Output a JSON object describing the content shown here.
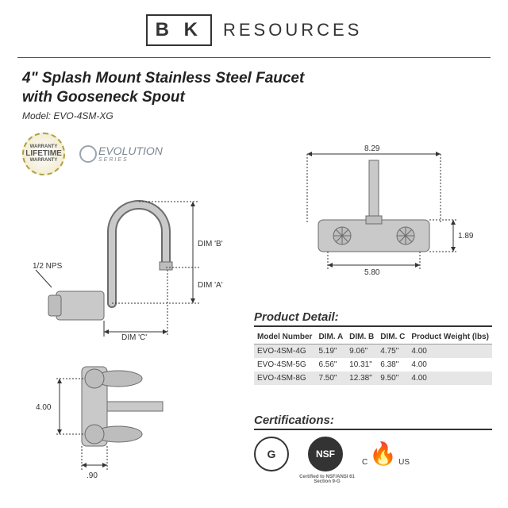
{
  "brand": {
    "logo": "B K",
    "name": "RESOURCES"
  },
  "title_line1": "4\" Splash Mount Stainless Steel Faucet",
  "title_line2": "with Gooseneck Spout",
  "model_label": "Model:",
  "model_value": "EVO-4SM-XG",
  "warranty": {
    "top": "WARRANTY",
    "mid": "LIFETIME",
    "bot": "WARRANTY"
  },
  "evolution": {
    "text": "EVOLUTION",
    "sub": "SERIES"
  },
  "side_view": {
    "nps": "1/2 NPS",
    "dim_a": "DIM 'A'",
    "dim_b": "DIM 'B'",
    "dim_c": "DIM 'C'"
  },
  "front_view": {
    "width": "8.29",
    "height": "1.89",
    "base": "5.80"
  },
  "bottom_view": {
    "height": "4.00",
    "depth": ".90"
  },
  "detail": {
    "heading": "Product Detail:",
    "columns": [
      "Model Number",
      "DIM. A",
      "DIM. B",
      "DIM. C",
      "Product Weight (lbs)"
    ],
    "rows": [
      [
        "EVO-4SM-4G",
        "5.19\"",
        "9.06\"",
        "4.75\"",
        "4.00"
      ],
      [
        "EVO-4SM-5G",
        "6.56\"",
        "10.31\"",
        "6.38\"",
        "4.00"
      ],
      [
        "EVO-4SM-8G",
        "7.50\"",
        "12.38\"",
        "9.50\"",
        "4.00"
      ]
    ],
    "row_shade": [
      "#e6e6e6",
      "#ffffff",
      "#e6e6e6"
    ]
  },
  "certs": {
    "heading": "Certifications:",
    "g": "G",
    "nsf": "NSF",
    "csa": "CSA",
    "csa_c": "C",
    "csa_us": "US",
    "g_sub": "",
    "nsf_sub": "Certified to NSF/ANSI 61 Section 9-G"
  },
  "colors": {
    "text": "#333333",
    "rule": "#555555",
    "shade": "#e6e6e6",
    "diagram_stroke": "#6b6b6b",
    "diagram_fill": "#c9c9c9"
  }
}
